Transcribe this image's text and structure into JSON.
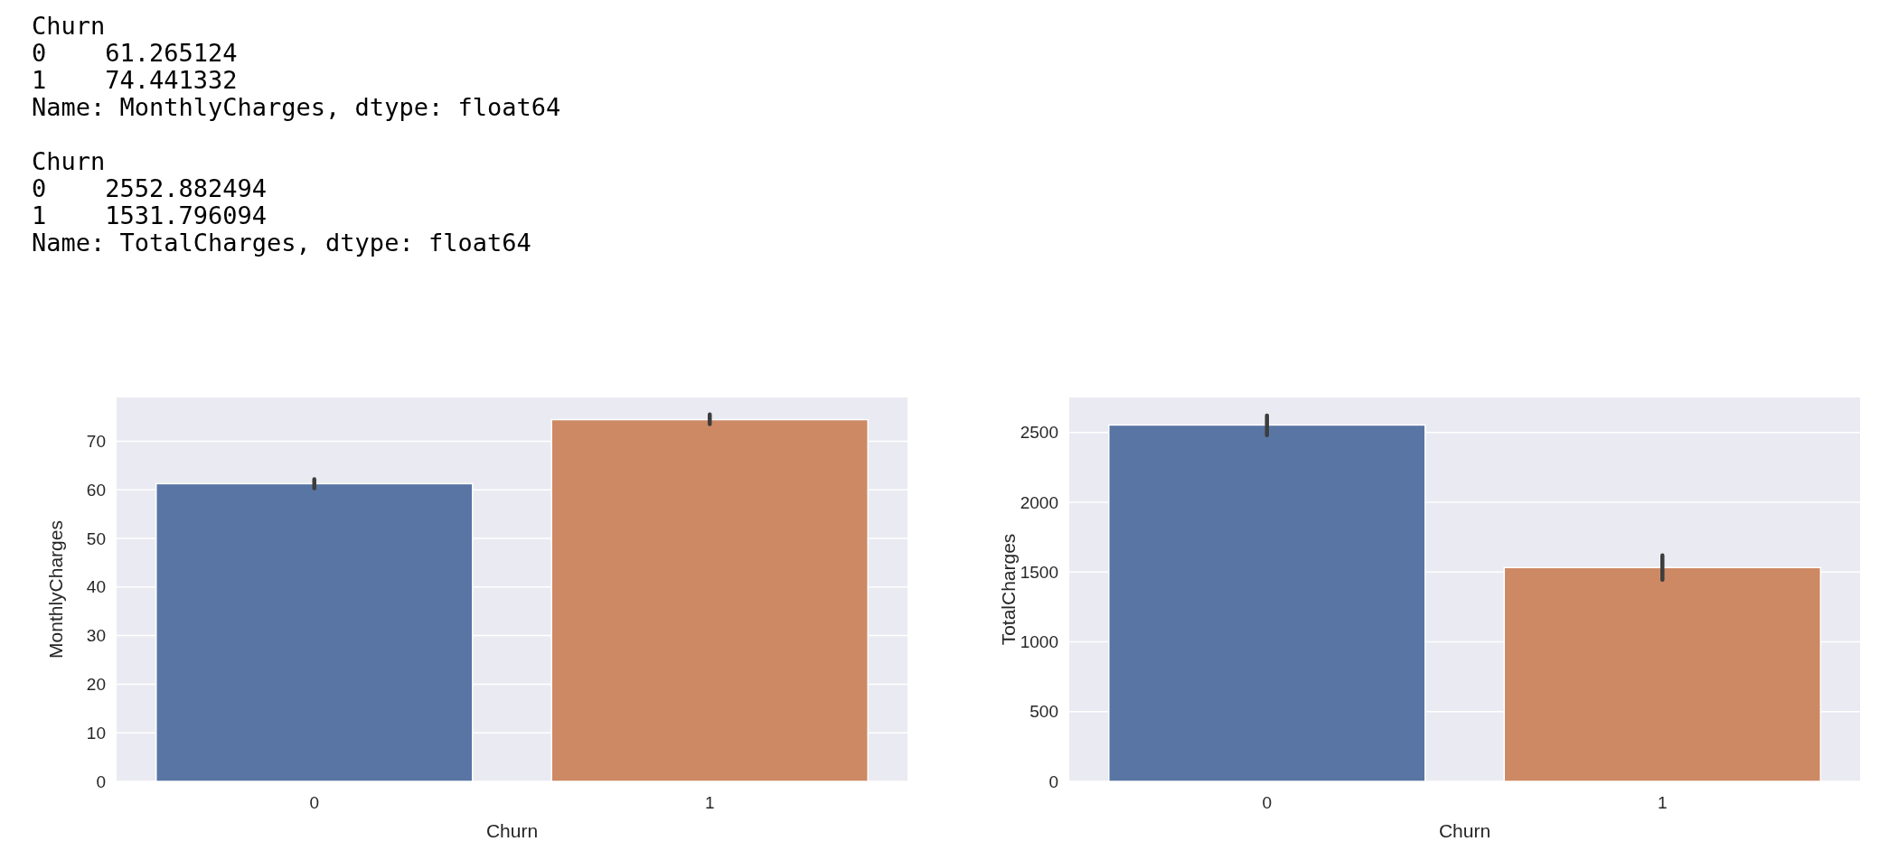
{
  "chart_data": [
    {
      "type": "other",
      "annotations": [
        "Churn",
        "0    61.265124",
        "1    74.441332",
        "Name: MonthlyCharges, dtype: float64"
      ]
    },
    {
      "type": "other",
      "annotations": [
        "Churn",
        "0    2552.882494",
        "1    1531.796094",
        "Name: TotalCharges, dtype: float64"
      ]
    },
    {
      "type": "bar",
      "xlabel": "Churn",
      "ylabel": "MonthlyCharges",
      "categories": [
        "0",
        "1"
      ],
      "values": [
        61.265124,
        74.441332
      ],
      "colors": [
        "#5875a4",
        "#cc8963"
      ],
      "errors": [
        [
          60.3,
          62.2
        ],
        [
          73.5,
          75.5
        ]
      ],
      "ylim": [
        0,
        79
      ],
      "yticks": [
        0,
        10,
        20,
        30,
        40,
        50,
        60,
        70
      ],
      "grid": "y"
    },
    {
      "type": "bar",
      "xlabel": "Churn",
      "ylabel": "TotalCharges",
      "categories": [
        "0",
        "1"
      ],
      "values": [
        2552.882494,
        1531.796094
      ],
      "colors": [
        "#5875a4",
        "#cc8963"
      ],
      "errors": [
        [
          2480,
          2620
        ],
        [
          1445,
          1620
        ]
      ],
      "ylim": [
        0,
        2750
      ],
      "yticks": [
        0,
        500,
        1000,
        1500,
        2000,
        2500
      ],
      "grid": "y"
    }
  ]
}
